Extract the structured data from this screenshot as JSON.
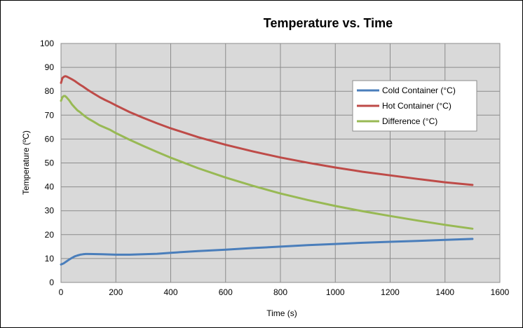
{
  "chart_data": {
    "type": "line",
    "title": "Temperature vs. Time",
    "xlabel": "Time (s)",
    "ylabel": "Temperature (ºC)",
    "xlim": [
      0,
      1600
    ],
    "ylim": [
      0,
      100
    ],
    "xticks": [
      0,
      200,
      400,
      600,
      800,
      1000,
      1200,
      1400,
      1600
    ],
    "yticks": [
      0,
      10,
      20,
      30,
      40,
      50,
      60,
      70,
      80,
      90,
      100
    ],
    "grid": true,
    "legend_position": "right",
    "series": [
      {
        "name": "Cold Container (°C)",
        "color": "#4a7ebb",
        "x": [
          0,
          10,
          20,
          30,
          40,
          50,
          60,
          70,
          80,
          90,
          100,
          150,
          200,
          250,
          300,
          350,
          400,
          500,
          600,
          700,
          800,
          900,
          1000,
          1100,
          1200,
          1300,
          1400,
          1500
        ],
        "y": [
          7.5,
          8.0,
          8.8,
          9.6,
          10.3,
          10.9,
          11.3,
          11.6,
          11.8,
          11.9,
          11.9,
          11.8,
          11.6,
          11.6,
          11.8,
          12.0,
          12.4,
          13.1,
          13.7,
          14.4,
          15.0,
          15.6,
          16.1,
          16.6,
          17.0,
          17.4,
          17.8,
          18.2
        ]
      },
      {
        "name": "Hot Container (°C)",
        "color": "#be4b48",
        "x": [
          0,
          5,
          10,
          15,
          20,
          30,
          40,
          50,
          60,
          70,
          80,
          90,
          100,
          120,
          140,
          160,
          180,
          200,
          250,
          300,
          350,
          400,
          500,
          600,
          700,
          800,
          900,
          1000,
          1100,
          1200,
          1300,
          1400,
          1500
        ],
        "y": [
          83.5,
          85.5,
          86.0,
          86.3,
          86.2,
          85.6,
          85.0,
          84.3,
          83.5,
          82.7,
          82.0,
          81.2,
          80.4,
          79.0,
          77.6,
          76.4,
          75.3,
          74.1,
          71.3,
          68.9,
          66.6,
          64.5,
          60.8,
          57.6,
          54.8,
          52.3,
          50.1,
          48.1,
          46.3,
          44.8,
          43.3,
          41.9,
          40.8
        ]
      },
      {
        "name": "Difference (°C)",
        "color": "#98b954",
        "x": [
          0,
          5,
          10,
          15,
          20,
          30,
          40,
          50,
          60,
          70,
          80,
          90,
          100,
          120,
          140,
          160,
          180,
          200,
          250,
          300,
          350,
          400,
          500,
          600,
          700,
          800,
          900,
          1000,
          1100,
          1200,
          1300,
          1400,
          1500
        ],
        "y": [
          76.0,
          77.5,
          78.0,
          78.0,
          77.5,
          76.2,
          74.5,
          73.2,
          72.0,
          71.2,
          70.2,
          69.3,
          68.5,
          67.2,
          65.8,
          64.8,
          63.8,
          62.5,
          59.7,
          57.1,
          54.6,
          52.2,
          47.8,
          43.9,
          40.4,
          37.2,
          34.5,
          32.0,
          29.8,
          27.8,
          25.9,
          24.1,
          22.5
        ]
      }
    ]
  }
}
